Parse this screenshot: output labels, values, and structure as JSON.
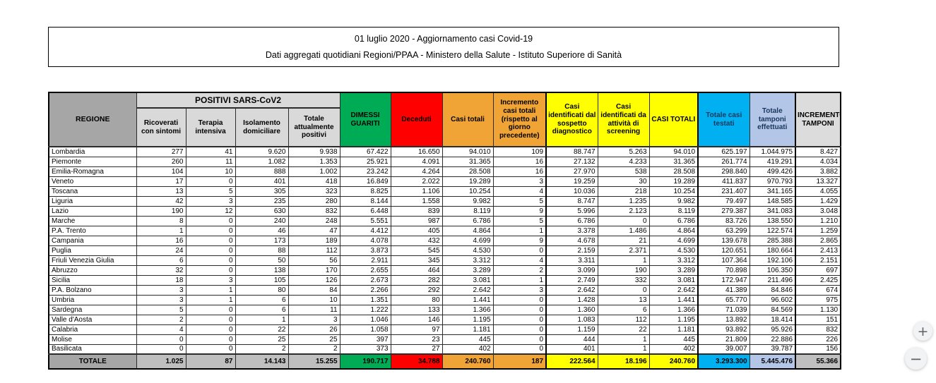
{
  "title_box": {
    "line1": "01 luglio 2020 - Aggiornamento casi Covid-19",
    "line2": "Dati aggregati quotidiani Regioni/PPAA - Ministero della Salute - Istituto Superiore di Sanità"
  },
  "colors": {
    "header-gray": "#A6A6A6",
    "subheader-gray": "#D9D9D9",
    "total-gray": "#BFBFBF",
    "green": "#00AB55",
    "red": "#FF0000",
    "orange": "#F1A436",
    "yellow": "#FFFF00",
    "cyan": "#00B0F0",
    "periwinkle": "#B4C6E7"
  },
  "table": {
    "corner_header": "REGIONE",
    "positivi_group_header": "POSITIVI SARS-CoV2",
    "columns": [
      {
        "id": "ricoverati_con_sintomi",
        "label": "Ricoverati con sintomi",
        "header_bg": "#D9D9D9"
      },
      {
        "id": "terapia_intensiva",
        "label": "Terapia intensiva",
        "header_bg": "#D9D9D9"
      },
      {
        "id": "isolamento_domiciliare",
        "label": "Isolamento domiciliare",
        "header_bg": "#D9D9D9"
      },
      {
        "id": "totale_attualmente_positivi",
        "label": "Totale attualmente positivi",
        "header_bg": "#D9D9D9"
      },
      {
        "id": "dimessi_guariti",
        "label": "DIMESSI GUARITI",
        "header_bg": "#00AB55"
      },
      {
        "id": "deceduti",
        "label": "Deceduti",
        "header_bg": "#FF0000"
      },
      {
        "id": "casi_totali",
        "label": "Casi totali",
        "header_bg": "#F1A436"
      },
      {
        "id": "incremento_casi_totali",
        "label": "Incremento casi totali (rispetto al giorno precedente)",
        "header_bg": "#F1A436"
      },
      {
        "id": "casi_sospetto_diagnostico",
        "label": "Casi identificati dal sospetto diagnostico",
        "header_bg": "#FFFF00"
      },
      {
        "id": "casi_screening",
        "label": "Casi identificati da attività di screening",
        "header_bg": "#FFFF00"
      },
      {
        "id": "casi_totali_maiuscolo",
        "label": "CASI TOTALI",
        "header_bg": "#FFFF00"
      },
      {
        "id": "totale_casi_testati",
        "label": "Totale casi testati",
        "header_bg": "#00B0F0",
        "header_fg": "#17375E"
      },
      {
        "id": "totale_tamponi_effettuati",
        "label": "Totale tamponi effettuati",
        "header_bg": "#B4C6E7",
        "header_fg": "#17375E"
      },
      {
        "id": "incremento_tamponi",
        "label": "INCREMENTO TAMPONI",
        "header_bg": "#DCDCDC"
      }
    ],
    "rows": [
      {
        "region": "Lombardia",
        "values": [
          "277",
          "41",
          "9.620",
          "9.938",
          "67.422",
          "16.650",
          "94.010",
          "109",
          "88.747",
          "5.263",
          "94.010",
          "625.197",
          "1.044.975",
          "8.427"
        ]
      },
      {
        "region": "Piemonte",
        "values": [
          "260",
          "11",
          "1.082",
          "1.353",
          "25.921",
          "4.091",
          "31.365",
          "16",
          "27.132",
          "4.233",
          "31.365",
          "261.774",
          "419.291",
          "4.034"
        ]
      },
      {
        "region": "Emilia-Romagna",
        "values": [
          "104",
          "10",
          "888",
          "1.002",
          "23.242",
          "4.264",
          "28.508",
          "16",
          "27.970",
          "538",
          "28.508",
          "298.840",
          "499.426",
          "3.882"
        ]
      },
      {
        "region": "Veneto",
        "values": [
          "17",
          "0",
          "401",
          "418",
          "16.849",
          "2.022",
          "19.289",
          "3",
          "19.259",
          "30",
          "19.289",
          "411.837",
          "970.793",
          "13.327"
        ]
      },
      {
        "region": "Toscana",
        "values": [
          "13",
          "5",
          "305",
          "323",
          "8.825",
          "1.106",
          "10.254",
          "4",
          "10.036",
          "218",
          "10.254",
          "231.407",
          "341.165",
          "4.055"
        ]
      },
      {
        "region": "Liguria",
        "values": [
          "42",
          "3",
          "235",
          "280",
          "8.144",
          "1.558",
          "9.982",
          "5",
          "8.747",
          "1.235",
          "9.982",
          "79.497",
          "148.585",
          "1.429"
        ]
      },
      {
        "region": "Lazio",
        "values": [
          "190",
          "12",
          "630",
          "832",
          "6.448",
          "839",
          "8.119",
          "9",
          "5.996",
          "2.123",
          "8.119",
          "279.387",
          "341.083",
          "3.048"
        ]
      },
      {
        "region": "Marche",
        "values": [
          "8",
          "0",
          "240",
          "248",
          "5.551",
          "987",
          "6.786",
          "5",
          "6.786",
          "0",
          "6.786",
          "83.726",
          "138.550",
          "1.210"
        ]
      },
      {
        "region": "P.A. Trento",
        "values": [
          "1",
          "0",
          "46",
          "47",
          "4.412",
          "405",
          "4.864",
          "1",
          "3.378",
          "1.486",
          "4.864",
          "63.299",
          "122.574",
          "1.259"
        ]
      },
      {
        "region": "Campania",
        "values": [
          "16",
          "0",
          "173",
          "189",
          "4.078",
          "432",
          "4.699",
          "9",
          "4.678",
          "21",
          "4.699",
          "139.678",
          "285.388",
          "2.865"
        ]
      },
      {
        "region": "Puglia",
        "values": [
          "24",
          "0",
          "88",
          "112",
          "3.873",
          "545",
          "4.530",
          "0",
          "2.159",
          "2.371",
          "4.530",
          "120.651",
          "180.664",
          "2.413"
        ]
      },
      {
        "region": "Friuli Venezia Giulia",
        "values": [
          "6",
          "0",
          "50",
          "56",
          "2.911",
          "345",
          "3.312",
          "4",
          "3.311",
          "1",
          "3.312",
          "107.364",
          "192.106",
          "2.151"
        ]
      },
      {
        "region": "Abruzzo",
        "values": [
          "32",
          "0",
          "138",
          "170",
          "2.655",
          "464",
          "3.289",
          "2",
          "3.099",
          "190",
          "3.289",
          "70.898",
          "106.350",
          "697"
        ]
      },
      {
        "region": "Sicilia",
        "values": [
          "18",
          "3",
          "105",
          "126",
          "2.673",
          "282",
          "3.081",
          "1",
          "2.749",
          "332",
          "3.081",
          "172.947",
          "211.496",
          "2.425"
        ]
      },
      {
        "region": "P.A. Bolzano",
        "values": [
          "3",
          "1",
          "80",
          "84",
          "2.266",
          "292",
          "2.642",
          "3",
          "2.642",
          "0",
          "2.642",
          "41.389",
          "84.846",
          "674"
        ]
      },
      {
        "region": "Umbria",
        "values": [
          "3",
          "1",
          "6",
          "10",
          "1.351",
          "80",
          "1.441",
          "0",
          "1.428",
          "13",
          "1.441",
          "65.770",
          "96.602",
          "975"
        ]
      },
      {
        "region": "Sardegna",
        "values": [
          "5",
          "0",
          "6",
          "11",
          "1.222",
          "133",
          "1.366",
          "0",
          "1.360",
          "6",
          "1.366",
          "71.039",
          "84.569",
          "1.130"
        ]
      },
      {
        "region": "Valle d'Aosta",
        "values": [
          "2",
          "0",
          "1",
          "3",
          "1.046",
          "146",
          "1.195",
          "0",
          "1.083",
          "112",
          "1.195",
          "13.892",
          "18.414",
          "151"
        ]
      },
      {
        "region": "Calabria",
        "values": [
          "4",
          "0",
          "22",
          "26",
          "1.058",
          "97",
          "1.181",
          "0",
          "1.159",
          "22",
          "1.181",
          "93.892",
          "95.926",
          "832"
        ]
      },
      {
        "region": "Molise",
        "values": [
          "0",
          "0",
          "25",
          "25",
          "397",
          "23",
          "445",
          "0",
          "444",
          "1",
          "445",
          "21.809",
          "22.886",
          "226"
        ]
      },
      {
        "region": "Basilicata",
        "values": [
          "0",
          "0",
          "2",
          "2",
          "373",
          "27",
          "402",
          "0",
          "401",
          "1",
          "402",
          "39.007",
          "39.787",
          "156"
        ]
      }
    ],
    "total_row": {
      "label": "TOTALE",
      "values": [
        "1.025",
        "87",
        "14.143",
        "15.255",
        "190.717",
        "34.788",
        "240.760",
        "187",
        "222.564",
        "18.196",
        "240.760",
        "3.293.300",
        "5.445.476",
        "55.366"
      ],
      "cell_bg": [
        "#BFBFBF",
        "#BFBFBF",
        "#BFBFBF",
        "#BFBFBF",
        "#00AB55",
        "#FF0000",
        "#F1A436",
        "#F1A436",
        "#FFFF00",
        "#FFFF00",
        "#FFFF00",
        "#00B0F0",
        "#B4C6E7",
        "#BFBFBF"
      ]
    }
  },
  "zoom_controls": {
    "zoom_in_label": "+",
    "zoom_out_label": "−"
  }
}
